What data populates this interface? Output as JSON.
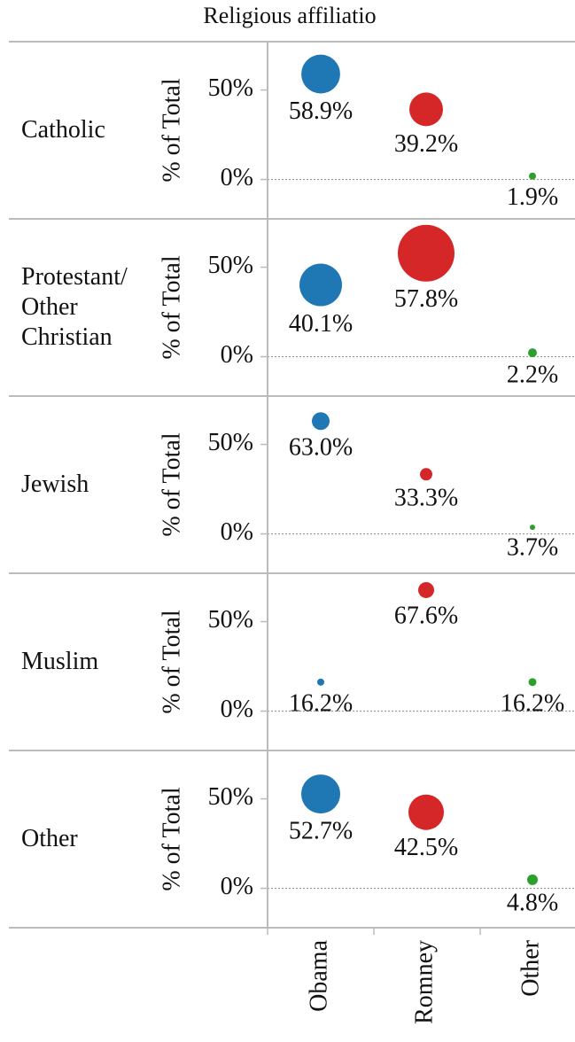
{
  "chart_data": {
    "type": "bubble",
    "title": "Religious affiliatio",
    "y_label": "% of Total",
    "categories": [
      "Obama",
      "Romney",
      "Other"
    ],
    "colors": [
      "#1f77b4",
      "#d62728",
      "#2ca02c"
    ],
    "ylim": [
      -22,
      77
    ],
    "yticks": [
      {
        "value": 0,
        "label": "0%"
      },
      {
        "value": 50,
        "label": "50%"
      }
    ],
    "facets": [
      {
        "name": "Catholic",
        "values": [
          58.9,
          39.2,
          1.9
        ],
        "value_labels": [
          "58.9%",
          "39.2%",
          "1.9%"
        ],
        "sizes": [
          480,
          360,
          16
        ]
      },
      {
        "name": "Protestant/ Other Christian",
        "values": [
          40.1,
          57.8,
          2.2
        ],
        "value_labels": [
          "40.1%",
          "57.8%",
          "2.2%"
        ],
        "sizes": [
          576,
          1024,
          25
        ]
      },
      {
        "name": "Jewish",
        "values": [
          63.0,
          33.3,
          3.7
        ],
        "value_labels": [
          "63.0%",
          "33.3%",
          "3.7%"
        ],
        "sizes": [
          100,
          49,
          9
        ]
      },
      {
        "name": "Muslim",
        "values": [
          16.2,
          67.6,
          16.2
        ],
        "value_labels": [
          "16.2%",
          "67.6%",
          "16.2%"
        ],
        "sizes": [
          16,
          81,
          20
        ]
      },
      {
        "name": "Other",
        "values": [
          52.7,
          42.5,
          4.8
        ],
        "value_labels": [
          "52.7%",
          "42.5%",
          "4.8%"
        ],
        "sizes": [
          484,
          400,
          36
        ]
      }
    ]
  }
}
